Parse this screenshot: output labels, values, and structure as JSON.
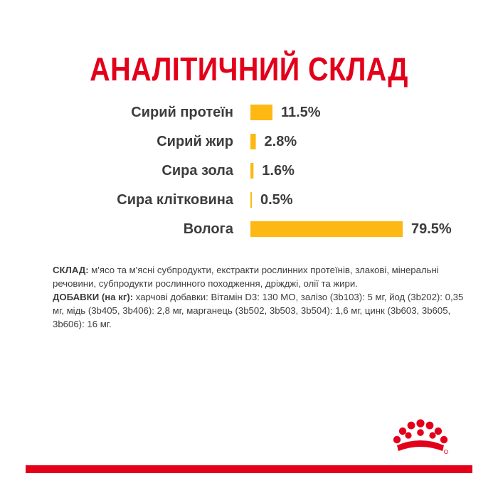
{
  "title": "АНАЛІТИЧНИЙ СКЛАД",
  "colors": {
    "accent": "#e2001a",
    "bar": "#fdb813",
    "text": "#3c3c3c"
  },
  "chart_data": {
    "type": "bar",
    "orientation": "horizontal",
    "categories": [
      "Сирий протеїн",
      "Сирий жир",
      "Сира зола",
      "Сира клітковина",
      "Вологa"
    ],
    "values": [
      11.5,
      2.8,
      1.6,
      0.5,
      79.5
    ],
    "value_labels": [
      "11.5%",
      "2.8%",
      "1.6%",
      "0.5%",
      "79.5%"
    ],
    "unit": "%",
    "xlim": [
      0,
      100
    ],
    "grid": false,
    "legend": "none"
  },
  "composition": {
    "ingredients_label": "СКЛАД:",
    "ingredients_text": " м'ясо та м'ясні субпродукти, екстракти рослинних протеїнів, злакові, мінеральні речовини, субпродукти рослинного походження, дріжджі, олії та жири.",
    "additives_label": "ДОБАВКИ (на кг):",
    "additives_text": " харчові добавки: Вітамін D3: 130 МО, залізо (3b103): 5 мг, йод (3b202): 0,35 мг, мідь (3b405, 3b406): 2,8 мг, марганець (3b502, 3b503, 3b504): 1,6 мг, цинк (3b603, 3b605, 3b606): 16 мг."
  },
  "logo": {
    "icon": "royal-canin-crown-icon"
  }
}
